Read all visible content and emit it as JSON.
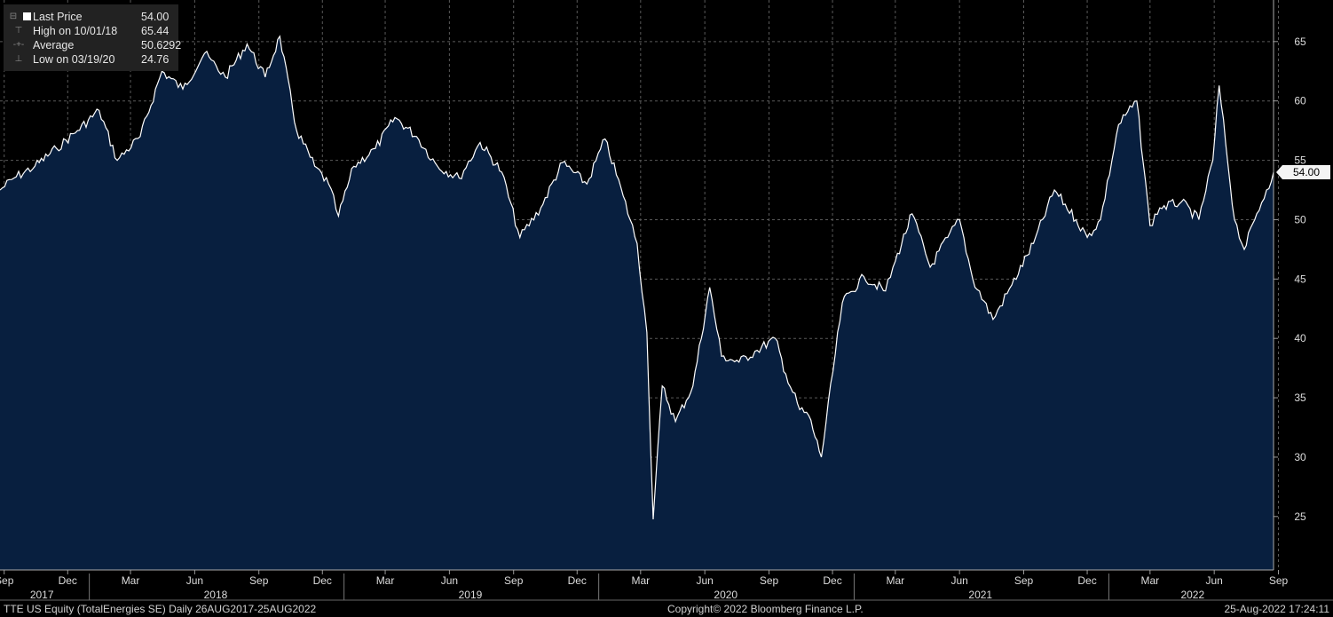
{
  "legend": {
    "last_label": "Last Price",
    "last_value": "54.00",
    "high_label": "High on 10/01/18",
    "high_value": "65.44",
    "avg_label": "Average",
    "avg_value": "50.6292",
    "low_label": "Low on 03/19/20",
    "low_value": "24.76"
  },
  "footer": {
    "left": "TTE US Equity (TotalEnergies SE)  Daily 26AUG2017-25AUG2022",
    "center": "Copyright© 2022 Bloomberg Finance L.P.",
    "right": "25-Aug-2022 17:24:11"
  },
  "colors": {
    "background": "#000000",
    "area_fill": "#081f3f",
    "line": "#ffffff",
    "grid": "#5a5a5a",
    "legend_bg": "#222222"
  },
  "chart_data": {
    "type": "area",
    "title": "",
    "series": [
      {
        "name": "Last Price",
        "x": [
          "2017-08-26",
          "2017-09-15",
          "2017-10-15",
          "2017-11-15",
          "2017-12-15",
          "2018-01-15",
          "2018-02-10",
          "2018-03-15",
          "2018-04-15",
          "2018-05-15",
          "2018-06-15",
          "2018-07-15",
          "2018-08-15",
          "2018-09-10",
          "2018-10-01",
          "2018-10-25",
          "2018-11-20",
          "2018-12-10",
          "2018-12-24",
          "2019-01-15",
          "2019-02-15",
          "2019-03-15",
          "2019-04-15",
          "2019-05-15",
          "2019-06-15",
          "2019-07-15",
          "2019-08-15",
          "2019-09-10",
          "2019-10-10",
          "2019-11-10",
          "2019-12-15",
          "2020-01-10",
          "2020-02-05",
          "2020-02-25",
          "2020-03-10",
          "2020-03-19",
          "2020-04-01",
          "2020-04-20",
          "2020-05-15",
          "2020-06-08",
          "2020-06-25",
          "2020-07-20",
          "2020-08-15",
          "2020-09-10",
          "2020-09-25",
          "2020-10-15",
          "2020-10-28",
          "2020-11-15",
          "2020-12-15",
          "2021-01-15",
          "2021-02-15",
          "2021-03-01",
          "2021-03-25",
          "2021-04-20",
          "2021-05-15",
          "2021-06-01",
          "2021-06-20",
          "2021-07-19",
          "2021-08-15",
          "2021-09-15",
          "2021-10-15",
          "2021-11-15",
          "2021-12-01",
          "2021-12-20",
          "2022-01-15",
          "2022-02-10",
          "2022-03-01",
          "2022-03-15",
          "2022-04-15",
          "2022-05-10",
          "2022-05-30",
          "2022-06-08",
          "2022-06-30",
          "2022-07-14",
          "2022-08-01",
          "2022-08-15",
          "2022-08-25"
        ],
        "values": [
          52.5,
          53.5,
          54.5,
          56,
          57.5,
          59.2,
          55,
          57,
          62.5,
          61,
          64,
          62,
          64.8,
          62,
          65.44,
          57.5,
          54.5,
          53,
          50.3,
          54.5,
          56,
          58.6,
          57,
          54.5,
          53.5,
          56.5,
          54,
          48.5,
          51,
          54.8,
          53,
          56.8,
          52,
          48,
          40.5,
          24.76,
          36,
          33,
          36,
          44.3,
          38.5,
          38,
          39,
          40,
          37,
          34,
          33.5,
          30,
          43,
          45.2,
          44,
          46.5,
          50.5,
          46,
          48.5,
          50,
          45,
          41.6,
          44.5,
          48,
          52.5,
          50,
          48.5,
          50,
          58,
          60,
          49.5,
          51,
          51.5,
          50,
          55,
          61.3,
          50,
          47.5,
          50.5,
          52.5,
          54
        ]
      }
    ],
    "y_ticks": [
      25,
      30,
      35,
      40,
      45,
      50,
      55,
      60,
      65
    ],
    "ylim": [
      20.5,
      68.5
    ],
    "x_month_labels": [
      "Sep",
      "Dec",
      "Mar",
      "Jun",
      "Sep",
      "Dec",
      "Mar",
      "Jun",
      "Sep",
      "Dec",
      "Mar",
      "Jun",
      "Sep",
      "Dec",
      "Mar",
      "Jun",
      "Sep",
      "Dec",
      "Mar",
      "Jun",
      "Sep"
    ],
    "x_year_labels": [
      "2017",
      "2018",
      "2019",
      "2020",
      "2021",
      "2022"
    ],
    "last_price_label": "54.00",
    "grid": true,
    "legend_position": "top-left"
  }
}
